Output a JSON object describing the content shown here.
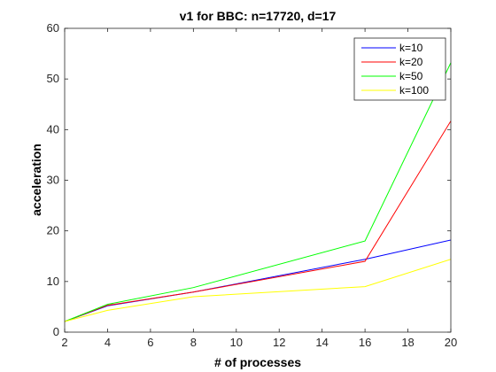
{
  "chart_data": {
    "type": "line",
    "title": "v1 for BBC: n=17720, d=17",
    "xlabel": "# of processes",
    "ylabel": "acceleration",
    "x": [
      2,
      4,
      8,
      16,
      20
    ],
    "xlim": [
      2,
      20
    ],
    "ylim": [
      0,
      60
    ],
    "xticks": [
      2,
      4,
      6,
      8,
      10,
      12,
      14,
      16,
      18,
      20
    ],
    "yticks": [
      0,
      10,
      20,
      30,
      40,
      50,
      60
    ],
    "grid": false,
    "legend_position": "top-right",
    "series": [
      {
        "name": "k=10",
        "color": "#0000ff",
        "values": [
          2.1,
          5.2,
          7.9,
          14.4,
          18.2
        ]
      },
      {
        "name": "k=20",
        "color": "#ff0000",
        "values": [
          2.1,
          5.3,
          7.9,
          14.0,
          41.7
        ]
      },
      {
        "name": "k=50",
        "color": "#00ff00",
        "values": [
          2.1,
          5.5,
          8.8,
          18.0,
          53.2
        ]
      },
      {
        "name": "k=100",
        "color": "#ffff00",
        "values": [
          2.1,
          4.3,
          7.0,
          9.0,
          14.4
        ]
      }
    ]
  }
}
